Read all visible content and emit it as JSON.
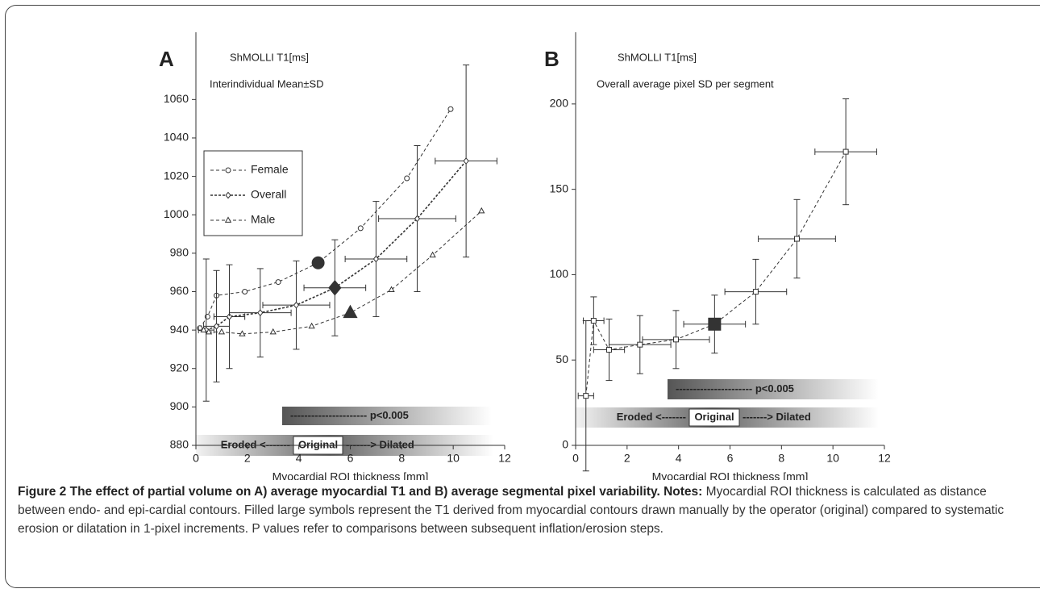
{
  "chart_data": [
    {
      "type": "scatter-line",
      "panel": "A",
      "y_unit": "ShMOLLI T1[ms]",
      "subtitle": "Interindividual Mean±SD",
      "xlabel": "Myocardial ROI thickness [mm]",
      "xlim": [
        0,
        12
      ],
      "xticks": [
        0,
        2,
        4,
        6,
        8,
        10,
        12
      ],
      "ylim": [
        880,
        1095
      ],
      "yticks": [
        880,
        900,
        920,
        940,
        960,
        980,
        1000,
        1020,
        1040,
        1060
      ],
      "legend": "upper left",
      "series": [
        {
          "name": "Female",
          "marker": "circle",
          "color": "#333333",
          "highlight_index": 5,
          "x": [
            0.15,
            0.45,
            0.8,
            1.9,
            3.2,
            4.75,
            6.4,
            8.2,
            9.9
          ],
          "values": [
            941,
            947,
            958,
            960,
            965,
            975,
            993,
            1019,
            1055
          ]
        },
        {
          "name": "Overall",
          "marker": "diamond",
          "color": "#333333",
          "highlight_index": 5,
          "x": [
            0.4,
            0.8,
            1.3,
            2.5,
            3.9,
            5.4,
            7.0,
            8.6,
            10.5
          ],
          "values": [
            940,
            942,
            947,
            949,
            953,
            962,
            977,
            998,
            1028
          ],
          "yerr": [
            37,
            29,
            27,
            23,
            23,
            25,
            30,
            38,
            50
          ],
          "xerr": [
            0.3,
            0.5,
            0.6,
            1.2,
            1.3,
            1.2,
            1.2,
            1.5,
            1.2
          ]
        },
        {
          "name": "Male",
          "marker": "triangle",
          "color": "#333333",
          "highlight_index": 6,
          "x": [
            0.3,
            0.5,
            1.0,
            1.8,
            3.0,
            4.5,
            6.0,
            7.6,
            9.2,
            11.1
          ],
          "values": [
            940,
            939,
            939,
            938,
            939,
            942,
            949,
            961,
            979,
            1002
          ]
        }
      ],
      "p_label": "---------------------- p<0.005",
      "scale_left": "Eroded <-------",
      "scale_mid": "Original",
      "scale_right": "-------> Dilated"
    },
    {
      "type": "scatter-line",
      "panel": "B",
      "y_unit": "ShMOLLI T1[ms]",
      "subtitle": "Overall average pixel SD per segment",
      "xlabel": "Myocardial ROI thickness [mm]",
      "xlim": [
        0,
        12
      ],
      "xticks": [
        0,
        2,
        4,
        6,
        8,
        10,
        12
      ],
      "ylim": [
        0,
        242
      ],
      "yticks": [
        0,
        50,
        100,
        150,
        200
      ],
      "series": [
        {
          "marker": "square",
          "color": "#333333",
          "highlight_index": 5,
          "x": [
            0.4,
            0.7,
            1.3,
            2.5,
            3.9,
            5.4,
            7.0,
            8.6,
            10.5
          ],
          "values": [
            29,
            73,
            56,
            59,
            62,
            71,
            90,
            121,
            172
          ],
          "yerr": [
            44,
            14,
            18,
            17,
            17,
            17,
            19,
            23,
            31
          ],
          "xerr": [
            0.3,
            0.4,
            0.6,
            1.2,
            1.3,
            1.2,
            1.2,
            1.5,
            1.2
          ]
        }
      ],
      "p_label": "---------------------- p<0.005",
      "scale_left": "Eroded <-------",
      "scale_mid": "Original",
      "scale_right": "-------> Dilated"
    }
  ],
  "caption": {
    "title": "Figure 2 The effect of partial volume on A) average myocardial T1 and B) average segmental pixel variability.",
    "notes_label": "Notes:",
    "text": "Myocardial ROI thickness is calculated as distance between endo- and epi-cardial contours. Filled large symbols represent the T1 derived from myocardial contours drawn manually by the operator (original) compared to systematic erosion or dilatation in 1-pixel increments. P values refer to comparisons between subsequent inflation/erosion steps."
  }
}
